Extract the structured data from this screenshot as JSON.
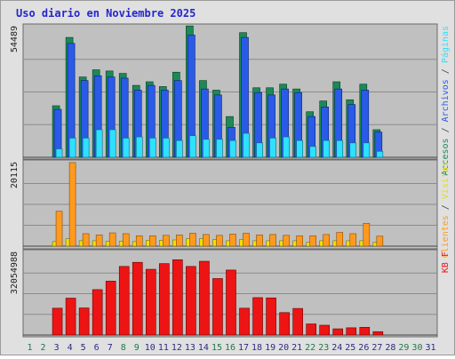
{
  "title": "Uso diario en Noviembre 2025",
  "colors": {
    "title": "#2525cc",
    "panel_bg": "#c0c0c0",
    "accesos": "#1c8a56",
    "archivos": "#2a5be8",
    "paginas": "#2fe0ff",
    "clientes": "#ff9a1f",
    "kb": "#ee1414",
    "weekday": "#2a2a8a",
    "weekend": "#1c7a48"
  },
  "chart_data": [
    {
      "type": "bar",
      "panel": "top",
      "scale_label": "54489",
      "legend": [
        "Accesos",
        "Archivos",
        "Páginas"
      ],
      "ymax": 54489,
      "days": [
        1,
        2,
        3,
        4,
        5,
        6,
        7,
        8,
        9,
        10,
        11,
        12,
        13,
        14,
        15,
        16,
        17,
        18,
        19,
        20,
        21,
        22,
        23,
        24,
        25,
        26,
        27,
        28,
        29,
        30,
        31
      ],
      "series": [
        {
          "name": "Accesos",
          "values": [
            0,
            0,
            21500,
            50000,
            33500,
            36500,
            36000,
            35000,
            30000,
            31500,
            29500,
            35500,
            54800,
            32000,
            28000,
            17000,
            52000,
            29000,
            29000,
            30500,
            28500,
            19000,
            23500,
            31500,
            24000,
            30500,
            11500,
            0,
            0,
            0,
            0
          ]
        },
        {
          "name": "Archivos",
          "values": [
            0,
            0,
            20000,
            47500,
            32000,
            34000,
            33500,
            33000,
            28000,
            30000,
            28000,
            32000,
            51000,
            28500,
            26000,
            12500,
            50000,
            27000,
            26000,
            28500,
            27000,
            17000,
            21000,
            28500,
            22000,
            28000,
            10500,
            0,
            0,
            0,
            0
          ]
        },
        {
          "name": "Páginas",
          "values": [
            0,
            0,
            3500,
            8000,
            8000,
            11500,
            11500,
            8000,
            8500,
            8000,
            8000,
            7000,
            9000,
            7500,
            7500,
            7000,
            10000,
            6000,
            8000,
            8500,
            7000,
            4500,
            7000,
            7000,
            6000,
            6000,
            2500,
            0,
            0,
            0,
            0
          ]
        }
      ]
    },
    {
      "type": "bar",
      "panel": "middle",
      "scale_label": "20115",
      "legend": [
        "Clientes",
        "Visitas"
      ],
      "ymax": 20115,
      "days": [
        1,
        2,
        3,
        4,
        5,
        6,
        7,
        8,
        9,
        10,
        11,
        12,
        13,
        14,
        15,
        16,
        17,
        18,
        19,
        20,
        21,
        22,
        23,
        24,
        25,
        26,
        27,
        28,
        29,
        30,
        31
      ],
      "series": [
        {
          "name": "Visitas",
          "values": [
            0,
            0,
            1100,
            1800,
            1300,
            1300,
            1200,
            1200,
            1100,
            1400,
            1400,
            1500,
            1800,
            1800,
            1600,
            1300,
            1600,
            1300,
            1300,
            1300,
            1300,
            900,
            1300,
            1300,
            1300,
            1300,
            900,
            0,
            0,
            0,
            0
          ]
        },
        {
          "name": "Clientes",
          "values": [
            0,
            0,
            8400,
            20115,
            3000,
            2700,
            3200,
            3000,
            2500,
            2500,
            2600,
            2700,
            3100,
            2800,
            2600,
            2900,
            3100,
            2700,
            2800,
            2600,
            2500,
            2500,
            2800,
            3300,
            3000,
            5500,
            2400,
            0,
            0,
            0,
            0
          ]
        }
      ]
    },
    {
      "type": "bar",
      "panel": "bottom",
      "scale_label": "32054988",
      "legend": [
        "KB F"
      ],
      "ymax": 32054988,
      "days": [
        1,
        2,
        3,
        4,
        5,
        6,
        7,
        8,
        9,
        10,
        11,
        12,
        13,
        14,
        15,
        16,
        17,
        18,
        19,
        20,
        21,
        22,
        23,
        24,
        25,
        26,
        27,
        28,
        29,
        30,
        31
      ],
      "series": [
        {
          "name": "KB F",
          "values": [
            0,
            0,
            10400000,
            14300000,
            10500000,
            17600000,
            20900000,
            26600000,
            28200000,
            25500000,
            27700000,
            29200000,
            26600000,
            28600000,
            21900000,
            25200000,
            10400000,
            14500000,
            14400000,
            8700000,
            10300000,
            4300000,
            3800000,
            2400000,
            2800000,
            3000000,
            1300000,
            0,
            0,
            0,
            0
          ]
        }
      ]
    }
  ],
  "x_axis": {
    "labels": [
      "1",
      "2",
      "3",
      "4",
      "5",
      "6",
      "7",
      "8",
      "9",
      "10",
      "11",
      "12",
      "13",
      "14",
      "15",
      "16",
      "17",
      "18",
      "19",
      "20",
      "21",
      "22",
      "23",
      "24",
      "25",
      "26",
      "27",
      "28",
      "29",
      "30",
      "31"
    ],
    "weekend_days": [
      1,
      2,
      8,
      9,
      15,
      16,
      22,
      23,
      29,
      30
    ]
  }
}
